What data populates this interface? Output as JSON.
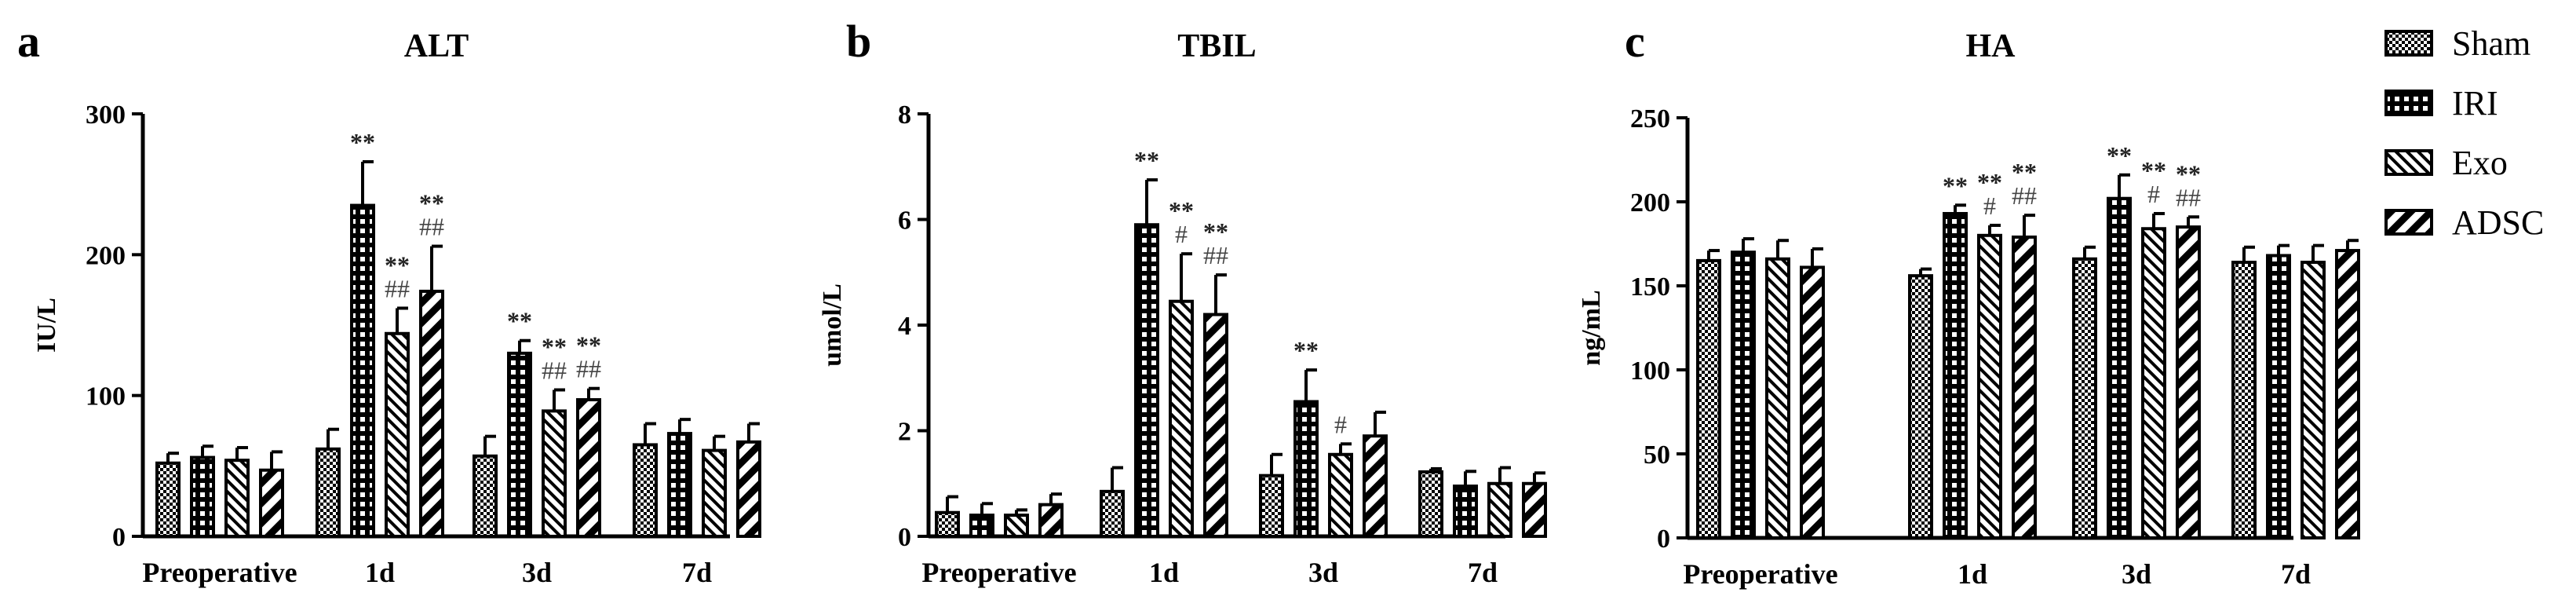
{
  "patterns": {
    "Sham": "checker",
    "IRI": "grid",
    "Exo": "diag-fine",
    "ADSC": "diag-bold"
  },
  "chart_data": [
    {
      "type": "bar",
      "panel_letter": "a",
      "title": "ALT",
      "ylabel": "IU/L",
      "xlabel": "",
      "ylim": [
        0,
        300
      ],
      "yticks": [
        0,
        100,
        200,
        300
      ],
      "categories": [
        "Preoperative",
        "1d",
        "3d",
        "7d"
      ],
      "series": [
        {
          "name": "Sham",
          "values": [
            52,
            62,
            57,
            65
          ],
          "errors": [
            7,
            14,
            14,
            15
          ]
        },
        {
          "name": "IRI",
          "values": [
            56,
            235,
            130,
            73
          ],
          "errors": [
            8,
            31,
            9,
            10
          ]
        },
        {
          "name": "Exo",
          "values": [
            54,
            144,
            89,
            61
          ],
          "errors": [
            9,
            18,
            15,
            10
          ]
        },
        {
          "name": "ADSC",
          "values": [
            47,
            174,
            97,
            67
          ],
          "errors": [
            13,
            32,
            8,
            13
          ]
        }
      ],
      "annotations": [
        [
          "",
          "",
          "",
          ""
        ],
        [
          "",
          "**",
          "**",
          ""
        ],
        [
          "",
          "**\n##",
          "**\n##",
          ""
        ],
        [
          "",
          "**\n##",
          "**\n##",
          ""
        ]
      ]
    },
    {
      "type": "bar",
      "panel_letter": "b",
      "title": "TBIL",
      "ylabel": "umol/L",
      "xlabel": "",
      "ylim": [
        0,
        8
      ],
      "yticks": [
        0,
        2,
        4,
        6,
        8
      ],
      "categories": [
        "Preoperative",
        "1d",
        "3d",
        "7d"
      ],
      "series": [
        {
          "name": "Sham",
          "values": [
            0.45,
            0.85,
            1.15,
            1.22
          ],
          "errors": [
            0.3,
            0.45,
            0.4,
            0.06
          ]
        },
        {
          "name": "IRI",
          "values": [
            0.4,
            5.9,
            2.55,
            0.95
          ],
          "errors": [
            0.22,
            0.85,
            0.6,
            0.28
          ]
        },
        {
          "name": "Exo",
          "values": [
            0.4,
            4.45,
            1.55,
            1.0
          ],
          "errors": [
            0.1,
            0.9,
            0.2,
            0.3
          ]
        },
        {
          "name": "ADSC",
          "values": [
            0.6,
            4.2,
            1.9,
            1.0
          ],
          "errors": [
            0.2,
            0.75,
            0.45,
            0.2
          ]
        }
      ],
      "annotations": [
        [
          "",
          "",
          "",
          ""
        ],
        [
          "",
          "**",
          "**",
          ""
        ],
        [
          "",
          "**\n#",
          "#",
          ""
        ],
        [
          "",
          "**\n##",
          "",
          ""
        ]
      ]
    },
    {
      "type": "bar",
      "panel_letter": "c",
      "title": "HA",
      "ylabel": "ng/mL",
      "xlabel": "",
      "ylim": [
        0,
        250
      ],
      "yticks": [
        0,
        50,
        100,
        150,
        200,
        250
      ],
      "categories": [
        "Preoperative",
        "1d",
        "3d",
        "7d"
      ],
      "series": [
        {
          "name": "Sham",
          "values": [
            165,
            156,
            166,
            164
          ],
          "errors": [
            6,
            4,
            7,
            9
          ]
        },
        {
          "name": "IRI",
          "values": [
            170,
            193,
            202,
            168
          ],
          "errors": [
            8,
            5,
            14,
            6
          ]
        },
        {
          "name": "Exo",
          "values": [
            166,
            180,
            184,
            164
          ],
          "errors": [
            11,
            6,
            9,
            10
          ]
        },
        {
          "name": "ADSC",
          "values": [
            161,
            179,
            185,
            171
          ],
          "errors": [
            11,
            13,
            6,
            6
          ]
        }
      ],
      "annotations": [
        [
          "",
          "",
          "",
          ""
        ],
        [
          "",
          "**",
          "**",
          ""
        ],
        [
          "",
          "**\n#",
          "**\n#",
          ""
        ],
        [
          "",
          "**\n##",
          "**\n##",
          ""
        ]
      ]
    }
  ],
  "legend": {
    "position": "right",
    "items": [
      "Sham",
      "IRI",
      "Exo",
      "ADSC"
    ]
  }
}
